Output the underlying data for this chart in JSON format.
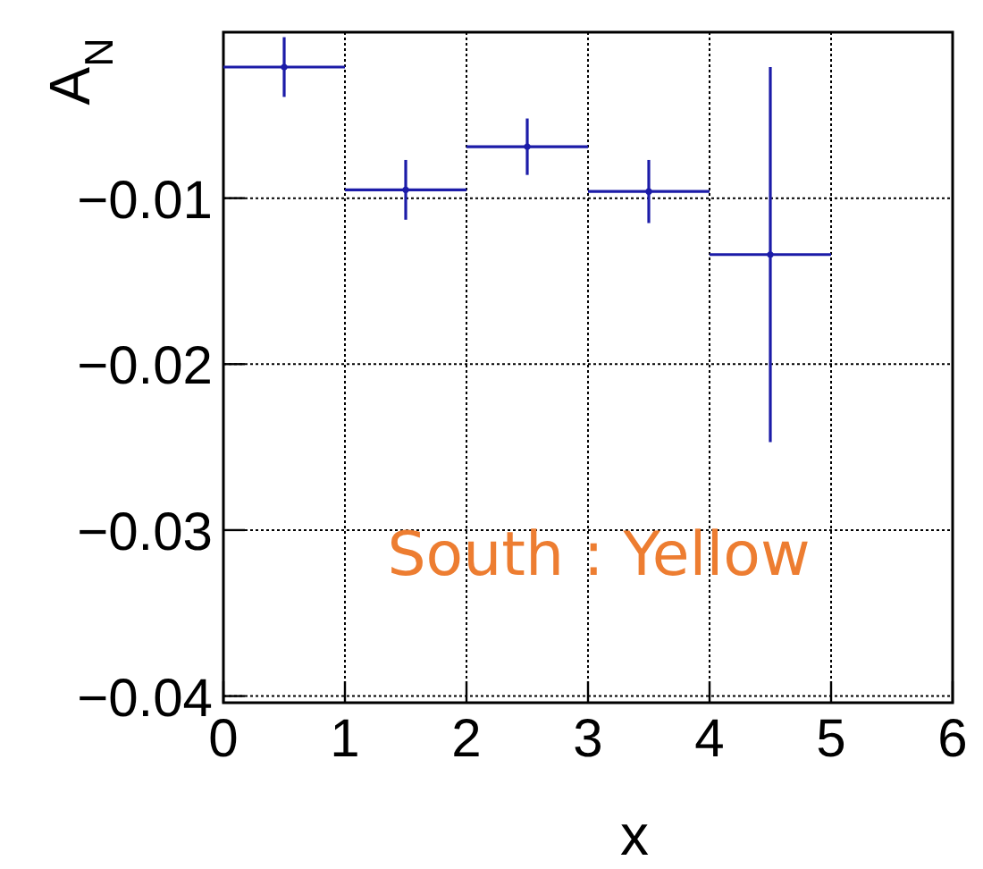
{
  "chart_data": {
    "type": "scatter",
    "xlabel": "x",
    "ylabel": "A$_{N}$",
    "x": [
      0.5,
      1.5,
      2.5,
      3.5,
      4.5
    ],
    "series": [
      {
        "color": "#1c1ca8",
        "values": [
          -0.0021,
          -0.0095,
          -0.0069,
          -0.0096,
          -0.0134
        ],
        "errors": [
          0.0018,
          0.0018,
          0.0017,
          0.0019,
          0.0113
        ],
        "xerrors": [
          0.5,
          0.5,
          0.5,
          0.5,
          0.5
        ]
      }
    ],
    "xlim": [
      0,
      6
    ],
    "ylim": [
      -0.0404,
      0
    ],
    "xticks": [
      0,
      1,
      2,
      3,
      4,
      5,
      6
    ],
    "yticks": [
      {
        "value": -0.01,
        "label": "−0.01"
      },
      {
        "value": -0.02,
        "label": "−0.02"
      },
      {
        "value": -0.03,
        "label": "−0.03"
      },
      {
        "value": -0.04,
        "label": "−0.04"
      }
    ],
    "grid": true,
    "annotations": [
      "South : Yellow"
    ]
  }
}
